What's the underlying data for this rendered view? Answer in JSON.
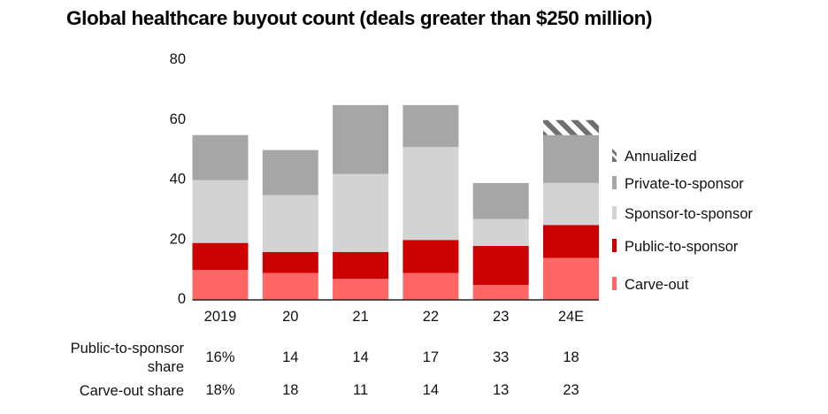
{
  "chart_data": {
    "type": "bar",
    "stacked": true,
    "title": "Global healthcare buyout count (deals greater than $250 million)",
    "xlabel": "",
    "ylabel": "",
    "ylim": [
      0,
      80
    ],
    "yticks": [
      0,
      20,
      40,
      60,
      80
    ],
    "grid": false,
    "legend_position": "right",
    "categories": [
      "2019",
      "20",
      "21",
      "22",
      "23",
      "24E"
    ],
    "series": [
      {
        "name": "Carve-out",
        "color": "#ff6666",
        "pattern": "solid",
        "values": [
          10,
          9,
          7,
          9,
          5,
          14
        ]
      },
      {
        "name": "Public-to-sponsor",
        "color": "#cc0000",
        "pattern": "solid",
        "values": [
          9,
          7,
          9,
          11,
          13,
          11
        ]
      },
      {
        "name": "Sponsor-to-sponsor",
        "color": "#d3d3d3",
        "pattern": "solid",
        "values": [
          21,
          19,
          26,
          31,
          9,
          14
        ]
      },
      {
        "name": "Private-to-sponsor",
        "color": "#a6a6a6",
        "pattern": "solid",
        "values": [
          15,
          15,
          23,
          14,
          12,
          16
        ]
      },
      {
        "name": "Annualized",
        "color": "#707070",
        "pattern": "hatched",
        "values": [
          0,
          0,
          0,
          0,
          0,
          5
        ]
      }
    ],
    "legend": [
      "Annualized",
      "Private-to-sponsor",
      "Sponsor-to-sponsor",
      "Public-to-sponsor",
      "Carve-out"
    ],
    "table": {
      "rows": [
        {
          "label_lines": [
            "Public-to-sponsor",
            "share"
          ],
          "values": [
            "16%",
            "14",
            "14",
            "17",
            "33",
            "18"
          ]
        },
        {
          "label_lines": [
            "Carve-out share"
          ],
          "values": [
            "18%",
            "18",
            "11",
            "14",
            "13",
            "23"
          ]
        }
      ]
    }
  }
}
